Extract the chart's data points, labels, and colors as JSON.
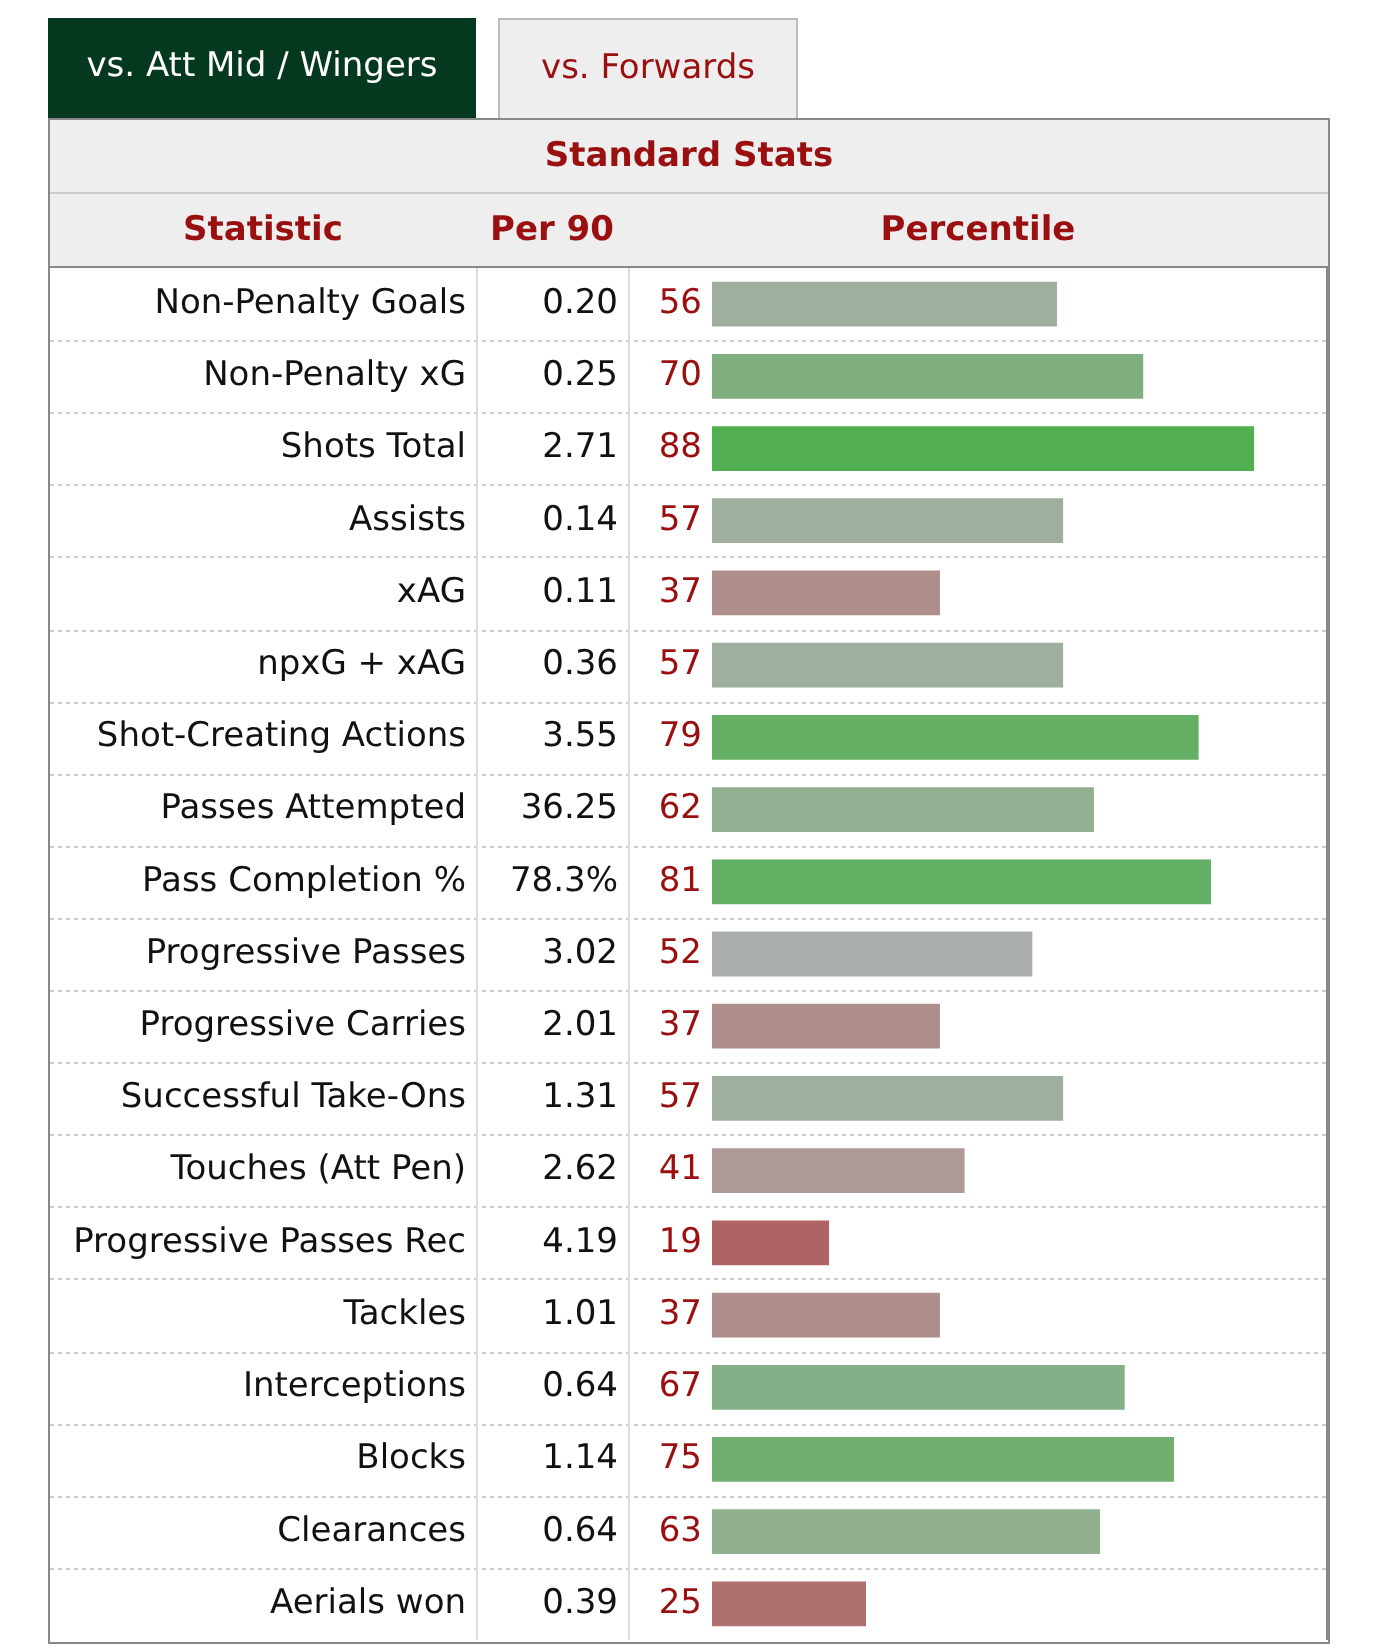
{
  "chart_data": {
    "type": "bar",
    "orientation": "horizontal",
    "title": "Standard Stats",
    "categories": [
      "Non-Penalty Goals",
      "Non-Penalty xG",
      "Shots Total",
      "Assists",
      "xAG",
      "npxG + xAG",
      "Shot-Creating Actions",
      "Passes Attempted",
      "Pass Completion %",
      "Progressive Passes",
      "Progressive Carries",
      "Successful Take-Ons",
      "Touches (Att Pen)",
      "Progressive Passes Rec",
      "Tackles",
      "Interceptions",
      "Blocks",
      "Clearances",
      "Aerials won"
    ],
    "series": [
      {
        "values": [
          56,
          70,
          88,
          57,
          37,
          57,
          79,
          62,
          81,
          52,
          37,
          57,
          41,
          19,
          37,
          67,
          75,
          63,
          25
        ],
        "colors": [
          "#9faf9f",
          "#7faf7f",
          "#51af51",
          "#9faf9f",
          "#ae8e8a",
          "#9faf9f",
          "#65af65",
          "#91af91",
          "#63af63",
          "#aaaeaa",
          "#ae8e8a",
          "#9faf9f",
          "#ae9a98",
          "#ae6462",
          "#ae8e8a",
          "#85af87",
          "#71af71",
          "#8faf8f",
          "#ae706e"
        ]
      }
    ],
    "xlim": [
      0,
      100
    ],
    "tick_labels": "y",
    "data_labels": true,
    "annotations": [
      "vs. Att Mid / Wingers",
      "vs. Forwards",
      "Statistic",
      "Per 90",
      "Percentile",
      "0.20",
      "0.25",
      "2.71",
      "0.14",
      "0.11",
      "0.36",
      "3.55",
      "36.25",
      "78.3%",
      "3.02",
      "2.01",
      "1.31",
      "2.62",
      "4.19",
      "1.01",
      "0.64",
      "1.14",
      "0.64",
      "0.39"
    ]
  }
}
